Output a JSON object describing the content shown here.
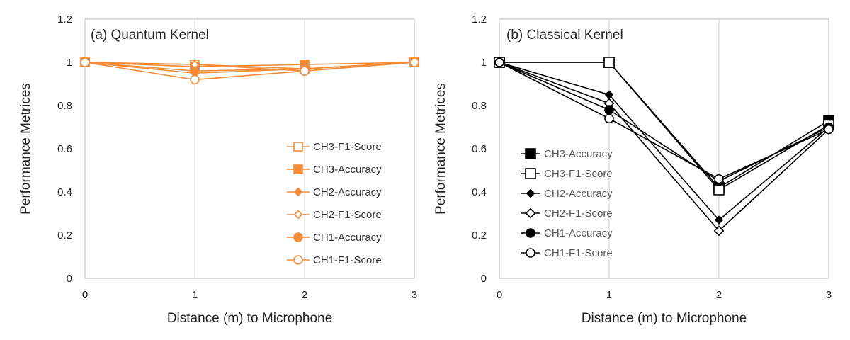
{
  "chart_data": [
    {
      "type": "line",
      "title": "(a) Quantum Kernel",
      "xlabel": "Distance (m) to Microphone",
      "ylabel": "Performance Metrices",
      "x": [
        0,
        1,
        2,
        3
      ],
      "xticks": [
        "0",
        "1",
        "2",
        "3"
      ],
      "ylim": [
        0,
        1.2
      ],
      "yticks": [
        "0",
        "0.2",
        "0.4",
        "0.6",
        "0.8",
        "1",
        "1.2"
      ],
      "grid": "vertical",
      "legend_position": "right",
      "color": "#F28C38",
      "legend_text_color": "#333333",
      "series": [
        {
          "name": "CH3-F1-Score",
          "marker": "square-open",
          "values": [
            1,
            0.99,
            0.97,
            1
          ]
        },
        {
          "name": "CH3-Accuracy",
          "marker": "square-filled",
          "values": [
            1,
            0.98,
            0.99,
            1
          ]
        },
        {
          "name": "CH2-Accuracy",
          "marker": "diamond-filled",
          "values": [
            1,
            0.95,
            0.97,
            1
          ]
        },
        {
          "name": "CH2-F1-Score",
          "marker": "diamond-open",
          "values": [
            1,
            0.99,
            0.96,
            1
          ]
        },
        {
          "name": "CH1-Accuracy",
          "marker": "circle-filled",
          "values": [
            1,
            0.96,
            0.97,
            1
          ]
        },
        {
          "name": "CH1-F1-Score",
          "marker": "circle-open",
          "values": [
            1,
            0.92,
            0.96,
            1
          ]
        }
      ]
    },
    {
      "type": "line",
      "title": "(b) Classical Kernel",
      "xlabel": "Distance (m) to Microphone",
      "ylabel": "Performance Metrices",
      "x": [
        0,
        1,
        2,
        3
      ],
      "xticks": [
        "0",
        "1",
        "2",
        "3"
      ],
      "ylim": [
        0,
        1.2
      ],
      "yticks": [
        "0",
        "0.2",
        "0.4",
        "0.6",
        "0.8",
        "1",
        "1.2"
      ],
      "grid": "vertical",
      "legend_position": "left-middle",
      "color": "#000000",
      "legend_text_color": "#555555",
      "series": [
        {
          "name": "CH3-Accuracy",
          "marker": "square-filled",
          "values": [
            1,
            1.0,
            0.42,
            0.73
          ]
        },
        {
          "name": "CH3-F1-Score",
          "marker": "square-open",
          "values": [
            1,
            1.0,
            0.41,
            0.71
          ]
        },
        {
          "name": "CH2-Accuracy",
          "marker": "diamond-filled",
          "values": [
            1,
            0.85,
            0.27,
            0.7
          ]
        },
        {
          "name": "CH2-F1-Score",
          "marker": "diamond-open",
          "values": [
            1,
            0.81,
            0.22,
            0.69
          ]
        },
        {
          "name": "CH1-Accuracy",
          "marker": "circle-filled",
          "values": [
            1,
            0.78,
            0.45,
            0.7
          ]
        },
        {
          "name": "CH1-F1-Score",
          "marker": "circle-open",
          "values": [
            1,
            0.74,
            0.46,
            0.69
          ]
        }
      ]
    }
  ]
}
